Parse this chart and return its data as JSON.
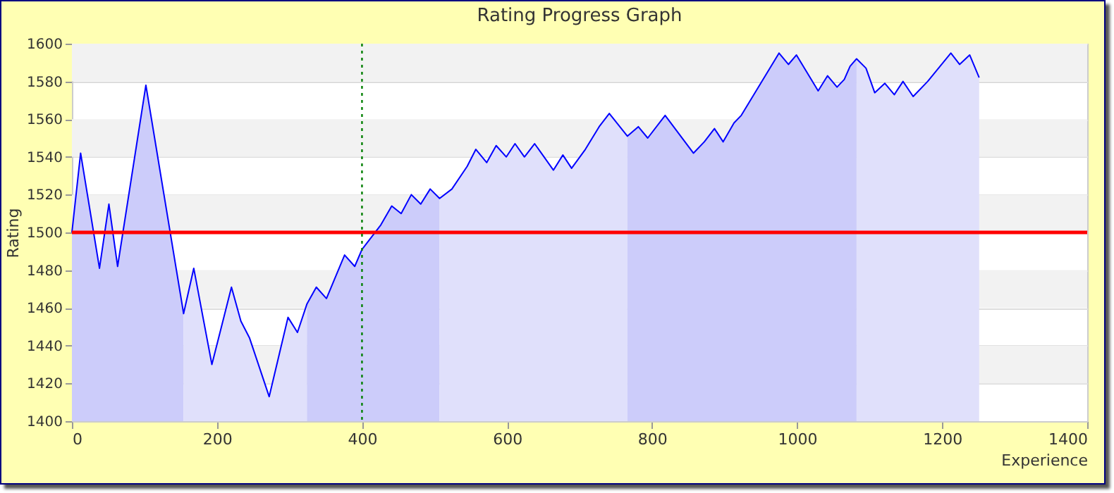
{
  "chart_data": {
    "type": "line",
    "title": "Rating Progress Graph",
    "xlabel": "Experience",
    "ylabel": "Rating",
    "xlim": [
      0,
      1400
    ],
    "xticks": [
      0,
      200,
      400,
      600,
      800,
      1000,
      1200,
      1400
    ],
    "ylim": [
      1400,
      1600
    ],
    "yticks": [
      1400,
      1420,
      1440,
      1460,
      1480,
      1500,
      1520,
      1540,
      1560,
      1580,
      1600
    ],
    "grid": "y",
    "marker": "none",
    "line_style": "solid",
    "series": [
      {
        "type": "area",
        "color": "#ccccfa",
        "x": [
          0,
          12,
          38,
          51,
          63,
          102,
          154
        ],
        "values": [
          1500,
          1542,
          1481,
          1515,
          1482,
          1578,
          1457
        ]
      },
      {
        "type": "area",
        "color": "#e0e0fb",
        "x": [
          154,
          168,
          193,
          220,
          233,
          245,
          272,
          298,
          311,
          324
        ],
        "values": [
          1457,
          1481,
          1430,
          1471,
          1453,
          1444,
          1413,
          1455,
          1447,
          1462
        ]
      },
      {
        "type": "area",
        "color": "#ccccfa",
        "x": [
          324,
          337,
          351,
          376,
          390,
          400,
          426,
          441,
          454,
          468,
          481,
          494,
          507
        ],
        "values": [
          1462,
          1471,
          1465,
          1488,
          1482,
          1491,
          1504,
          1514,
          1510,
          1520,
          1515,
          1523,
          1518
        ]
      },
      {
        "type": "area",
        "color": "#e0e0fb",
        "x": [
          507,
          524,
          545,
          557,
          572,
          585,
          599,
          611,
          624,
          638,
          664,
          677,
          689,
          708,
          727,
          741,
          766
        ],
        "values": [
          1518,
          1523,
          1535,
          1544,
          1537,
          1546,
          1540,
          1547,
          1540,
          1547,
          1533,
          1541,
          1534,
          1544,
          1556,
          1563,
          1551
        ]
      },
      {
        "type": "area",
        "color": "#ccccfa",
        "x": [
          766,
          781,
          794,
          818,
          857,
          872,
          886,
          898,
          913,
          923,
          975,
          988,
          999,
          1029,
          1042,
          1055,
          1065,
          1073,
          1082
        ],
        "values": [
          1551,
          1556,
          1550,
          1562,
          1542,
          1548,
          1555,
          1548,
          1558,
          1562,
          1595,
          1589,
          1594,
          1575,
          1583,
          1577,
          1581,
          1588,
          1592
        ]
      },
      {
        "type": "area",
        "color": "#e0e0fb",
        "x": [
          1082,
          1095,
          1107,
          1121,
          1134,
          1146,
          1160,
          1180,
          1212,
          1224,
          1238,
          1251
        ],
        "values": [
          1592,
          1587,
          1574,
          1579,
          1573,
          1580,
          1572,
          1580,
          1595,
          1589,
          1594,
          1582
        ]
      },
      {
        "color": "#0000ff",
        "x": [
          0,
          12,
          38,
          51,
          63,
          102,
          154,
          168,
          193,
          220,
          233,
          245,
          272,
          298,
          311,
          324,
          337,
          351,
          376,
          390,
          400,
          426,
          441,
          454,
          468,
          481,
          494,
          507,
          524,
          545,
          557,
          572,
          585,
          599,
          611,
          624,
          638,
          664,
          677,
          689,
          708,
          727,
          741,
          766,
          781,
          794,
          818,
          857,
          872,
          886,
          898,
          913,
          923,
          975,
          988,
          999,
          1029,
          1042,
          1055,
          1065,
          1073,
          1082,
          1095,
          1107,
          1121,
          1134,
          1146,
          1160,
          1180,
          1212,
          1224,
          1238,
          1251
        ],
        "values": [
          1500,
          1542,
          1481,
          1515,
          1482,
          1578,
          1457,
          1481,
          1430,
          1471,
          1453,
          1444,
          1413,
          1455,
          1447,
          1462,
          1471,
          1465,
          1488,
          1482,
          1491,
          1504,
          1514,
          1510,
          1520,
          1515,
          1523,
          1518,
          1523,
          1535,
          1544,
          1537,
          1546,
          1540,
          1547,
          1540,
          1547,
          1533,
          1541,
          1534,
          1544,
          1556,
          1563,
          1551,
          1556,
          1550,
          1562,
          1542,
          1548,
          1555,
          1548,
          1558,
          1562,
          1595,
          1589,
          1594,
          1575,
          1583,
          1577,
          1581,
          1588,
          1592,
          1587,
          1574,
          1579,
          1573,
          1580,
          1572,
          1580,
          1595,
          1589,
          1594,
          1582
        ]
      }
    ],
    "ref_lines": [
      {
        "axis": "y",
        "value": 1500,
        "color": "#ff0000",
        "line_style": "solid"
      },
      {
        "axis": "x",
        "value": 400,
        "color": "#008000",
        "line_style": "dotted"
      }
    ]
  }
}
